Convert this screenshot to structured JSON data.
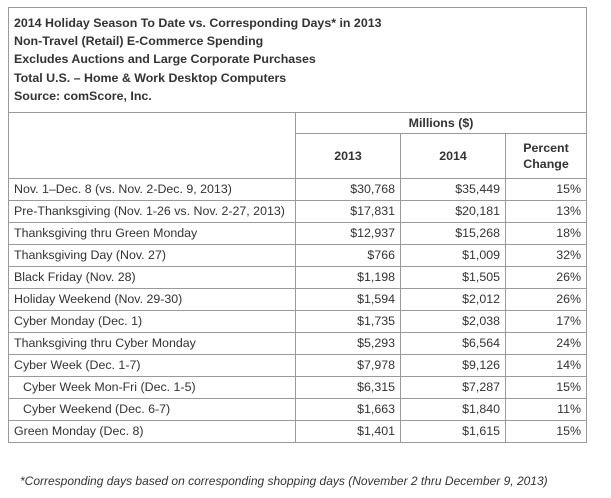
{
  "header_lines": [
    "2014 Holiday Season To Date vs. Corresponding Days* in 2013",
    "Non-Travel (Retail) E-Commerce Spending",
    "Excludes Auctions and Large Corporate Purchases",
    "Total U.S. – Home & Work Desktop Computers",
    "Source: comScore, Inc."
  ],
  "footnote": "*Corresponding days based on corresponding shopping days (November 2 thru December 9, 2013)",
  "chart_data": {
    "type": "table",
    "title": "2014 Holiday Season To Date vs. Corresponding Days* in 2013",
    "subtitle": [
      "Non-Travel (Retail) E-Commerce Spending",
      "Excludes Auctions and Large Corporate Purchases",
      "Total U.S. – Home & Work Desktop Computers",
      "Source: comScore, Inc."
    ],
    "group_header": "Millions ($)",
    "columns": [
      "2013",
      "2014",
      "Percent Change"
    ],
    "rows": [
      {
        "label": "Nov. 1–Dec. 8 (vs. Nov. 2-Dec. 9, 2013)",
        "indent": false,
        "v2013": "$30,768",
        "v2014": "$35,449",
        "pct": "15%"
      },
      {
        "label": "Pre-Thanksgiving (Nov. 1-26 vs. Nov. 2-27, 2013)",
        "indent": false,
        "v2013": "$17,831",
        "v2014": "$20,181",
        "pct": "13%"
      },
      {
        "label": "Thanksgiving thru Green Monday",
        "indent": false,
        "v2013": "$12,937",
        "v2014": "$15,268",
        "pct": "18%"
      },
      {
        "label": "Thanksgiving Day (Nov. 27)",
        "indent": false,
        "v2013": "$766",
        "v2014": "$1,009",
        "pct": "32%"
      },
      {
        "label": "Black Friday (Nov. 28)",
        "indent": false,
        "v2013": "$1,198",
        "v2014": "$1,505",
        "pct": "26%"
      },
      {
        "label": "Holiday Weekend (Nov. 29-30)",
        "indent": false,
        "v2013": "$1,594",
        "v2014": "$2,012",
        "pct": "26%"
      },
      {
        "label": "Cyber Monday (Dec. 1)",
        "indent": false,
        "v2013": "$1,735",
        "v2014": "$2,038",
        "pct": "17%"
      },
      {
        "label": "Thanksgiving thru Cyber Monday",
        "indent": false,
        "v2013": "$5,293",
        "v2014": "$6,564",
        "pct": "24%"
      },
      {
        "label": "Cyber Week (Dec. 1-7)",
        "indent": false,
        "v2013": "$7,978",
        "v2014": "$9,126",
        "pct": "14%"
      },
      {
        "label": "Cyber Week Mon-Fri (Dec. 1-5)",
        "indent": true,
        "v2013": "$6,315",
        "v2014": "$7,287",
        "pct": "15%"
      },
      {
        "label": "Cyber Weekend (Dec. 6-7)",
        "indent": true,
        "v2013": "$1,663",
        "v2014": "$1,840",
        "pct": "11%"
      },
      {
        "label": "Green Monday (Dec. 8)",
        "indent": false,
        "v2013": "$1,401",
        "v2014": "$1,615",
        "pct": "15%"
      }
    ]
  }
}
